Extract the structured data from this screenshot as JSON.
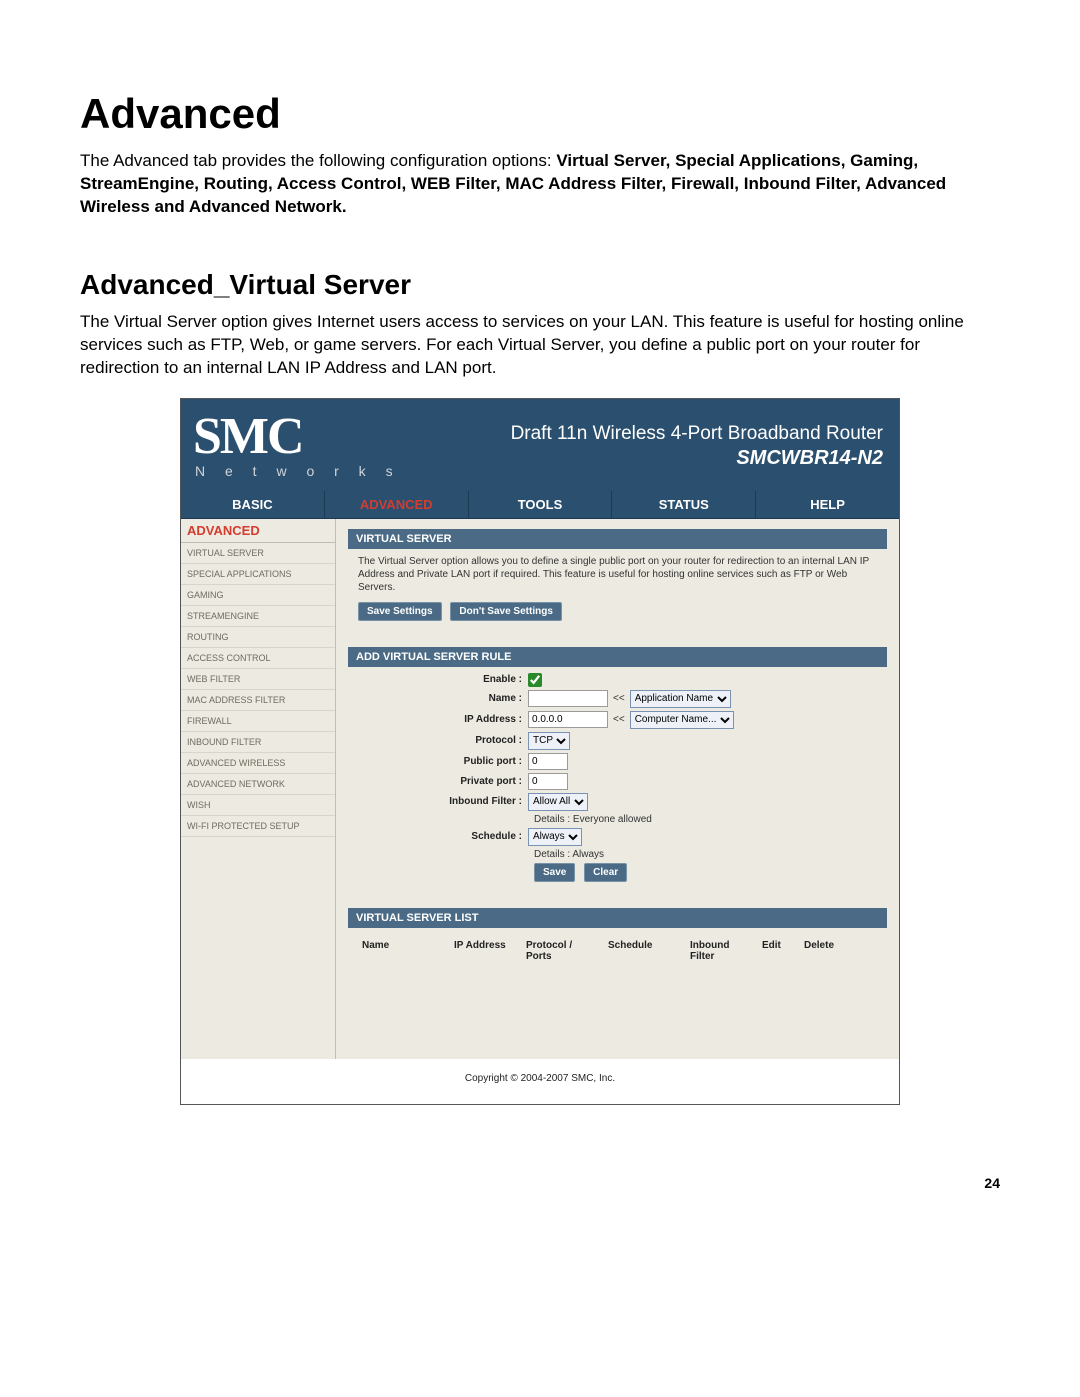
{
  "doc": {
    "heading": "Advanced",
    "intro_prefix": "The Advanced tab provides the following configuration options: ",
    "intro_bold": "Virtual Server, Special Applications, Gaming, StreamEngine, Routing, Access Control, WEB Filter, MAC Address Filter, Firewall, Inbound Filter, Advanced Wireless and Advanced Network.",
    "section_heading": "Advanced_Virtual Server",
    "section_desc": "The Virtual Server option gives Internet users access to services on your LAN. This feature is useful for hosting online services such as FTP, Web, or game servers. For each Virtual Server, you define a public port on your router for redirection to an internal LAN IP Address and LAN port.",
    "page_number": "24"
  },
  "shot": {
    "brand": {
      "main": "SMC",
      "sub": "N e t w o r k s"
    },
    "headline": {
      "main": "Draft 11n Wireless 4-Port Broadband Router",
      "sub": "SMCWBR14-N2"
    },
    "tabs": [
      "BASIC",
      "ADVANCED",
      "TOOLS",
      "STATUS",
      "HELP"
    ],
    "active_tab": 1,
    "sidebar": {
      "title": "ADVANCED",
      "items": [
        "VIRTUAL SERVER",
        "SPECIAL APPLICATIONS",
        "GAMING",
        "STREAMENGINE",
        "ROUTING",
        "ACCESS CONTROL",
        "WEB FILTER",
        "MAC ADDRESS FILTER",
        "FIREWALL",
        "INBOUND FILTER",
        "ADVANCED WIRELESS",
        "ADVANCED NETWORK",
        "WISH",
        "WI-FI PROTECTED SETUP"
      ]
    },
    "panel1": {
      "header": "VIRTUAL SERVER",
      "desc": "The Virtual Server option allows you to define a single public port on your router for redirection to an internal LAN IP Address and Private LAN port if required. This feature is useful for hosting online services such as FTP or Web Servers.",
      "save": "Save Settings",
      "dont_save": "Don't Save Settings"
    },
    "panel2": {
      "header": "ADD VIRTUAL SERVER RULE",
      "labels": {
        "enable": "Enable :",
        "name": "Name :",
        "ip": "IP Address :",
        "protocol": "Protocol :",
        "public_port": "Public port :",
        "private_port": "Private port :",
        "inbound": "Inbound Filter :",
        "schedule": "Schedule :"
      },
      "values": {
        "enable_checked": true,
        "name": "",
        "ip": "0.0.0.0",
        "protocol": "TCP",
        "public_port": "0",
        "private_port": "0",
        "inbound": "Allow All",
        "inbound_detail": "Details : Everyone allowed",
        "schedule": "Always",
        "schedule_detail": "Details : Always",
        "app_name_sel": "Application Name",
        "computer_sel": "Computer Name...",
        "arrow": "<<"
      },
      "save": "Save",
      "clear": "Clear"
    },
    "panel3": {
      "header": "VIRTUAL SERVER LIST",
      "columns": {
        "name": "Name",
        "ip": "IP Address",
        "proto": "Protocol / Ports",
        "sched": "Schedule",
        "filter": "Inbound Filter",
        "edit": "Edit",
        "del": "Delete"
      }
    },
    "copyright": "Copyright © 2004-2007 SMC, Inc."
  },
  "colors": {
    "header_bg": "#2b4f6e",
    "panel_header": "#4a6a85",
    "body_bg": "#eceae1",
    "accent_red": "#d43c2f"
  }
}
